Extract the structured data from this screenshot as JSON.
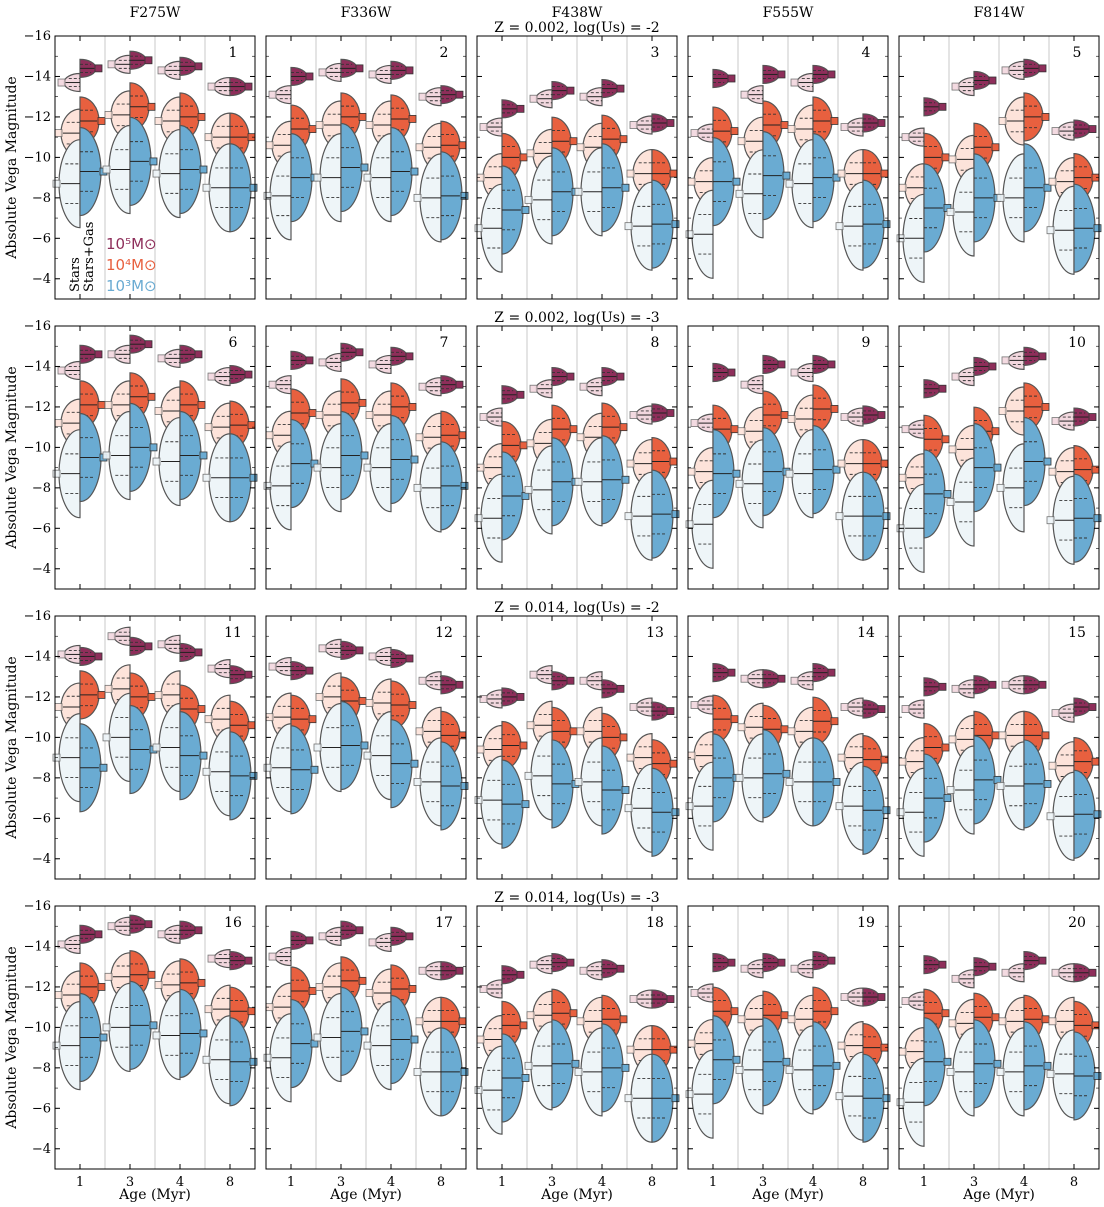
{
  "chart_data": {
    "type": "violin",
    "filter_titles": [
      "F275W",
      "F336W",
      "F438W",
      "F555W",
      "F814W"
    ],
    "row_titles": [
      "Z = 0.002, log(Us) = -2",
      "Z = 0.002, log(Us) = -3",
      "Z = 0.014, log(Us) = -2",
      "Z = 0.014, log(Us) = -3"
    ],
    "ylabel": "Absolute Vega Magnitude",
    "xlabel": "Age (Myr)",
    "categories": [
      "1",
      "3",
      "4",
      "8"
    ],
    "ylim": [
      -3,
      -16
    ],
    "yticks": [
      -16,
      -14,
      -12,
      -10,
      -8,
      -6,
      -4
    ],
    "panel_numbers": [
      "1",
      "2",
      "3",
      "4",
      "5",
      "6",
      "7",
      "8",
      "9",
      "10",
      "11",
      "12",
      "13",
      "14",
      "15",
      "16",
      "17",
      "18",
      "19",
      "20"
    ],
    "legend": {
      "masses": [
        {
          "label": "10⁵M⊙",
          "color": "#8e2e5a"
        },
        {
          "label": "10⁴M⊙",
          "color": "#e8603f"
        },
        {
          "label": "10³M⊙",
          "color": "#6aabd2"
        }
      ],
      "sides": [
        "Stars",
        "Stars+Gas"
      ]
    },
    "colors": {
      "m5_gas": "#8e2e5a",
      "m5_star": "#f2d7de",
      "m4_gas": "#e8603f",
      "m4_star": "#fde3da",
      "m3_gas": "#6aabd2",
      "m3_star": "#eef5f8"
    },
    "panels": [
      {
        "m5": [
          [
            -13.7,
            -14.4
          ],
          [
            -14.6,
            -14.8
          ],
          [
            -14.3,
            -14.5
          ],
          [
            -13.5,
            -13.5
          ]
        ],
        "m4": [
          [
            -11.2,
            -11.8
          ],
          [
            -12.1,
            -12.5
          ],
          [
            -11.8,
            -12.0
          ],
          [
            -11.0,
            -11.0
          ]
        ],
        "m3": [
          [
            -8.7,
            -9.3
          ],
          [
            -9.4,
            -9.8
          ],
          [
            -9.2,
            -9.4
          ],
          [
            -8.5,
            -8.5
          ]
        ]
      },
      {
        "m5": [
          [
            -13.1,
            -14.0
          ],
          [
            -14.2,
            -14.4
          ],
          [
            -14.1,
            -14.3
          ],
          [
            -13.0,
            -13.1
          ]
        ],
        "m4": [
          [
            -10.6,
            -11.4
          ],
          [
            -11.6,
            -12.0
          ],
          [
            -11.6,
            -11.9
          ],
          [
            -10.5,
            -10.6
          ]
        ],
        "m3": [
          [
            -8.1,
            -9.0
          ],
          [
            -9.0,
            -9.5
          ],
          [
            -9.0,
            -9.3
          ],
          [
            -8.0,
            -8.1
          ]
        ]
      },
      {
        "m5": [
          [
            -11.5,
            -12.4
          ],
          [
            -12.9,
            -13.3
          ],
          [
            -13.0,
            -13.4
          ],
          [
            -11.6,
            -11.7
          ]
        ],
        "m4": [
          [
            -9.0,
            -10.0
          ],
          [
            -10.2,
            -10.8
          ],
          [
            -10.5,
            -10.9
          ],
          [
            -9.2,
            -9.2
          ]
        ],
        "m3": [
          [
            -6.5,
            -7.4
          ],
          [
            -7.9,
            -8.3
          ],
          [
            -8.3,
            -8.5
          ],
          [
            -6.6,
            -6.7
          ]
        ]
      },
      {
        "m5": [
          [
            -11.2,
            -13.9
          ],
          [
            -13.1,
            -14.1
          ],
          [
            -13.7,
            -14.1
          ],
          [
            -11.5,
            -11.7
          ]
        ],
        "m4": [
          [
            -8.8,
            -11.3
          ],
          [
            -10.8,
            -11.6
          ],
          [
            -11.4,
            -11.8
          ],
          [
            -9.2,
            -9.2
          ]
        ],
        "m3": [
          [
            -6.2,
            -8.8
          ],
          [
            -8.2,
            -9.1
          ],
          [
            -8.7,
            -9.0
          ],
          [
            -6.6,
            -6.7
          ]
        ]
      },
      {
        "m5": [
          [
            -11.0,
            -12.5
          ],
          [
            -13.5,
            -13.8
          ],
          [
            -14.3,
            -14.4
          ],
          [
            -11.3,
            -11.4
          ]
        ],
        "m4": [
          [
            -8.5,
            -10.0
          ],
          [
            -9.9,
            -10.5
          ],
          [
            -11.8,
            -12.0
          ],
          [
            -8.8,
            -9.0
          ]
        ],
        "m3": [
          [
            -6.0,
            -7.5
          ],
          [
            -7.3,
            -8.0
          ],
          [
            -8.0,
            -8.5
          ],
          [
            -6.4,
            -6.5
          ]
        ]
      },
      {
        "m5": [
          [
            -13.8,
            -14.6
          ],
          [
            -14.6,
            -15.1
          ],
          [
            -14.4,
            -14.6
          ],
          [
            -13.5,
            -13.6
          ]
        ],
        "m4": [
          [
            -11.2,
            -12.1
          ],
          [
            -12.1,
            -12.5
          ],
          [
            -11.8,
            -12.1
          ],
          [
            -11.0,
            -11.1
          ]
        ],
        "m3": [
          [
            -8.7,
            -9.5
          ],
          [
            -9.6,
            -10.0
          ],
          [
            -9.3,
            -9.6
          ],
          [
            -8.5,
            -8.5
          ]
        ]
      },
      {
        "m5": [
          [
            -13.1,
            -14.3
          ],
          [
            -14.2,
            -14.7
          ],
          [
            -14.1,
            -14.5
          ],
          [
            -13.0,
            -13.1
          ]
        ],
        "m4": [
          [
            -10.6,
            -11.7
          ],
          [
            -11.6,
            -12.2
          ],
          [
            -11.6,
            -12.0
          ],
          [
            -10.5,
            -10.6
          ]
        ],
        "m3": [
          [
            -8.1,
            -9.2
          ],
          [
            -9.0,
            -9.6
          ],
          [
            -9.0,
            -9.4
          ],
          [
            -8.0,
            -8.1
          ]
        ]
      },
      {
        "m5": [
          [
            -11.5,
            -12.6
          ],
          [
            -12.9,
            -13.5
          ],
          [
            -13.0,
            -13.5
          ],
          [
            -11.6,
            -11.7
          ]
        ],
        "m4": [
          [
            -9.0,
            -10.1
          ],
          [
            -10.2,
            -10.9
          ],
          [
            -10.5,
            -11.0
          ],
          [
            -9.2,
            -9.3
          ]
        ],
        "m3": [
          [
            -6.5,
            -7.6
          ],
          [
            -7.9,
            -8.3
          ],
          [
            -8.3,
            -8.4
          ],
          [
            -6.6,
            -6.7
          ]
        ]
      },
      {
        "m5": [
          [
            -11.2,
            -13.7
          ],
          [
            -13.1,
            -14.1
          ],
          [
            -13.7,
            -14.1
          ],
          [
            -11.5,
            -11.6
          ]
        ],
        "m4": [
          [
            -8.8,
            -10.9
          ],
          [
            -10.8,
            -11.6
          ],
          [
            -11.4,
            -11.9
          ],
          [
            -9.2,
            -9.2
          ]
        ],
        "m3": [
          [
            -6.2,
            -8.7
          ],
          [
            -8.2,
            -8.8
          ],
          [
            -8.7,
            -8.9
          ],
          [
            -6.6,
            -6.6
          ]
        ]
      },
      {
        "m5": [
          [
            -10.9,
            -12.9
          ],
          [
            -13.5,
            -14.0
          ],
          [
            -14.3,
            -14.5
          ],
          [
            -11.3,
            -11.5
          ]
        ],
        "m4": [
          [
            -8.5,
            -10.4
          ],
          [
            -9.9,
            -10.8
          ],
          [
            -11.8,
            -12.0
          ],
          [
            -8.8,
            -8.9
          ]
        ],
        "m3": [
          [
            -6.0,
            -7.7
          ],
          [
            -7.3,
            -9.0
          ],
          [
            -8.0,
            -9.3
          ],
          [
            -6.4,
            -6.5
          ]
        ]
      },
      {
        "m5": [
          [
            -14.1,
            -14.0
          ],
          [
            -15.0,
            -14.5
          ],
          [
            -14.6,
            -14.2
          ],
          [
            -13.4,
            -13.1
          ]
        ],
        "m4": [
          [
            -11.5,
            -12.1
          ],
          [
            -12.4,
            -12.0
          ],
          [
            -12.1,
            -11.4
          ],
          [
            -10.9,
            -10.6
          ]
        ],
        "m3": [
          [
            -9.0,
            -8.5
          ],
          [
            -10.0,
            -9.4
          ],
          [
            -9.5,
            -9.1
          ],
          [
            -8.3,
            -8.1
          ]
        ]
      },
      {
        "m5": [
          [
            -13.5,
            -13.3
          ],
          [
            -14.4,
            -14.3
          ],
          [
            -14.0,
            -13.9
          ],
          [
            -12.8,
            -12.6
          ]
        ],
        "m4": [
          [
            -11.0,
            -10.9
          ],
          [
            -12.0,
            -11.8
          ],
          [
            -11.7,
            -11.6
          ],
          [
            -10.3,
            -10.1
          ]
        ],
        "m3": [
          [
            -8.5,
            -8.4
          ],
          [
            -9.5,
            -9.6
          ],
          [
            -9.1,
            -8.7
          ],
          [
            -7.8,
            -7.6
          ]
        ]
      },
      {
        "m5": [
          [
            -11.9,
            -12.0
          ],
          [
            -13.1,
            -12.8
          ],
          [
            -12.8,
            -12.4
          ],
          [
            -11.5,
            -11.3
          ]
        ],
        "m4": [
          [
            -9.4,
            -9.6
          ],
          [
            -10.6,
            -10.3
          ],
          [
            -10.3,
            -10.0
          ],
          [
            -9.0,
            -8.7
          ]
        ],
        "m3": [
          [
            -6.9,
            -6.7
          ],
          [
            -8.1,
            -7.7
          ],
          [
            -7.8,
            -7.4
          ],
          [
            -6.5,
            -6.3
          ]
        ]
      },
      {
        "m5": [
          [
            -11.6,
            -13.2
          ],
          [
            -12.9,
            -12.9
          ],
          [
            -12.8,
            -13.2
          ],
          [
            -11.5,
            -11.4
          ]
        ],
        "m4": [
          [
            -9.1,
            -10.9
          ],
          [
            -10.5,
            -10.4
          ],
          [
            -10.3,
            -10.8
          ],
          [
            -9.0,
            -8.9
          ]
        ],
        "m3": [
          [
            -6.6,
            -8.0
          ],
          [
            -8.0,
            -8.2
          ],
          [
            -7.8,
            -7.8
          ],
          [
            -6.6,
            -6.4
          ]
        ]
      },
      {
        "m5": [
          [
            -11.4,
            -12.5
          ],
          [
            -12.4,
            -12.6
          ],
          [
            -12.6,
            -12.6
          ],
          [
            -11.2,
            -11.5
          ]
        ],
        "m4": [
          [
            -8.8,
            -9.5
          ],
          [
            -9.9,
            -10.1
          ],
          [
            -10.1,
            -10.1
          ],
          [
            -8.6,
            -8.8
          ]
        ],
        "m3": [
          [
            -6.3,
            -7.0
          ],
          [
            -7.4,
            -7.9
          ],
          [
            -7.6,
            -7.7
          ],
          [
            -6.1,
            -6.2
          ]
        ]
      },
      {
        "m5": [
          [
            -14.1,
            -14.6
          ],
          [
            -15.0,
            -15.1
          ],
          [
            -14.6,
            -14.8
          ],
          [
            -13.4,
            -13.3
          ]
        ],
        "m4": [
          [
            -11.6,
            -12.0
          ],
          [
            -12.5,
            -12.6
          ],
          [
            -12.1,
            -12.2
          ],
          [
            -10.9,
            -10.8
          ]
        ],
        "m3": [
          [
            -9.1,
            -9.5
          ],
          [
            -10.0,
            -10.1
          ],
          [
            -9.6,
            -9.7
          ],
          [
            -8.4,
            -8.3
          ]
        ]
      },
      {
        "m5": [
          [
            -13.5,
            -14.3
          ],
          [
            -14.5,
            -14.8
          ],
          [
            -14.2,
            -14.5
          ],
          [
            -12.8,
            -12.8
          ]
        ],
        "m4": [
          [
            -11.0,
            -11.8
          ],
          [
            -12.0,
            -12.3
          ],
          [
            -11.7,
            -11.9
          ],
          [
            -10.3,
            -10.3
          ]
        ],
        "m3": [
          [
            -8.5,
            -9.2
          ],
          [
            -9.5,
            -9.8
          ],
          [
            -9.1,
            -9.4
          ],
          [
            -7.8,
            -7.8
          ]
        ]
      },
      {
        "m5": [
          [
            -11.9,
            -12.6
          ],
          [
            -13.1,
            -13.2
          ],
          [
            -12.8,
            -12.9
          ],
          [
            -11.4,
            -11.4
          ]
        ],
        "m4": [
          [
            -9.4,
            -10.1
          ],
          [
            -10.6,
            -10.7
          ],
          [
            -10.3,
            -10.4
          ],
          [
            -8.9,
            -8.9
          ]
        ],
        "m3": [
          [
            -6.9,
            -7.5
          ],
          [
            -8.1,
            -8.2
          ],
          [
            -7.8,
            -8.0
          ],
          [
            -6.5,
            -6.5
          ]
        ]
      },
      {
        "m5": [
          [
            -11.7,
            -13.2
          ],
          [
            -12.9,
            -13.2
          ],
          [
            -12.9,
            -13.3
          ],
          [
            -11.5,
            -11.5
          ]
        ],
        "m4": [
          [
            -9.2,
            -10.8
          ],
          [
            -10.4,
            -10.6
          ],
          [
            -10.4,
            -10.8
          ],
          [
            -9.1,
            -9.0
          ]
        ],
        "m3": [
          [
            -6.7,
            -8.4
          ],
          [
            -7.9,
            -8.3
          ],
          [
            -7.9,
            -8.1
          ],
          [
            -6.6,
            -6.5
          ]
        ]
      },
      {
        "m5": [
          [
            -11.3,
            -13.1
          ],
          [
            -12.4,
            -13.0
          ],
          [
            -12.7,
            -13.3
          ],
          [
            -12.7,
            -12.7
          ]
        ],
        "m4": [
          [
            -8.8,
            -10.7
          ],
          [
            -10.2,
            -10.5
          ],
          [
            -10.3,
            -10.4
          ],
          [
            -10.3,
            -10.1
          ]
        ],
        "m3": [
          [
            -6.3,
            -8.3
          ],
          [
            -7.8,
            -8.2
          ],
          [
            -7.8,
            -8.1
          ],
          [
            -7.7,
            -7.6
          ]
        ]
      }
    ]
  }
}
